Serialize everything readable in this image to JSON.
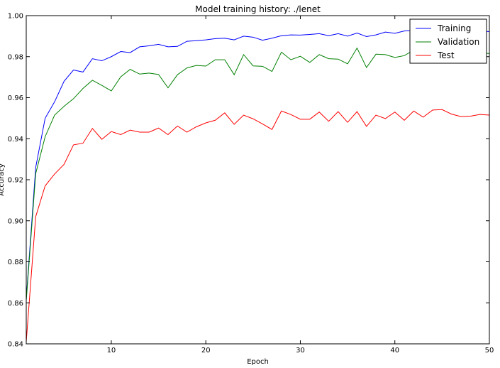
{
  "chart_data": {
    "type": "line",
    "title": "Model training history: ./lenet",
    "xlabel": "Epoch",
    "ylabel": "Accuracy",
    "xlim": [
      1,
      50
    ],
    "ylim": [
      0.84,
      1.0
    ],
    "x_ticks": [
      10,
      20,
      30,
      40,
      50
    ],
    "y_ticks": [
      "0.84",
      "0.86",
      "0.88",
      "0.90",
      "0.92",
      "0.94",
      "0.96",
      "0.98",
      "1.00"
    ],
    "grid": false,
    "legend_position": "top-right",
    "x": [
      1,
      2,
      3,
      4,
      5,
      6,
      7,
      8,
      9,
      10,
      11,
      12,
      13,
      14,
      15,
      16,
      17,
      18,
      19,
      20,
      21,
      22,
      23,
      24,
      25,
      26,
      27,
      28,
      29,
      30,
      31,
      32,
      33,
      34,
      35,
      36,
      37,
      38,
      39,
      40,
      41,
      42,
      43,
      44,
      45,
      46,
      47,
      48,
      49,
      50
    ],
    "series": [
      {
        "name": "Training",
        "color": "#0000ff",
        "values": [
          0.862,
          0.926,
          0.95,
          0.958,
          0.968,
          0.9735,
          0.9725,
          0.979,
          0.978,
          0.98,
          0.9825,
          0.982,
          0.9848,
          0.9853,
          0.986,
          0.9848,
          0.985,
          0.9875,
          0.9878,
          0.9882,
          0.9888,
          0.989,
          0.9882,
          0.99,
          0.9895,
          0.988,
          0.989,
          0.9902,
          0.9906,
          0.9905,
          0.9908,
          0.9912,
          0.9902,
          0.9912,
          0.99,
          0.9915,
          0.9898,
          0.9906,
          0.992,
          0.9914,
          0.9925,
          0.9928,
          0.993,
          0.993,
          0.9928,
          0.9925,
          0.9926,
          0.9924,
          0.9925,
          0.9922
        ]
      },
      {
        "name": "Validation",
        "color": "#008000",
        "values": [
          0.861,
          0.923,
          0.941,
          0.9515,
          0.9558,
          0.9595,
          0.9645,
          0.9685,
          0.966,
          0.9633,
          0.9702,
          0.9738,
          0.9715,
          0.972,
          0.9713,
          0.9648,
          0.9712,
          0.9745,
          0.9757,
          0.9754,
          0.9785,
          0.9785,
          0.9712,
          0.981,
          0.9755,
          0.9753,
          0.9728,
          0.9822,
          0.9785,
          0.9802,
          0.9772,
          0.981,
          0.979,
          0.9788,
          0.9765,
          0.9842,
          0.9747,
          0.9812,
          0.981,
          0.9796,
          0.9805,
          0.9832,
          0.9818,
          0.982,
          0.9822,
          0.9815,
          0.982,
          0.9815,
          0.9818,
          0.9815
        ]
      },
      {
        "name": "Test",
        "color": "#ff0000",
        "values": [
          0.841,
          0.902,
          0.917,
          0.9228,
          0.9275,
          0.937,
          0.9378,
          0.945,
          0.9397,
          0.9435,
          0.942,
          0.9442,
          0.9432,
          0.9432,
          0.9452,
          0.942,
          0.9462,
          0.9432,
          0.9458,
          0.9477,
          0.949,
          0.9526,
          0.947,
          0.9515,
          0.9497,
          0.9472,
          0.9445,
          0.9535,
          0.9518,
          0.9495,
          0.9495,
          0.953,
          0.9485,
          0.9532,
          0.948,
          0.9532,
          0.946,
          0.9515,
          0.9498,
          0.953,
          0.949,
          0.9535,
          0.9505,
          0.954,
          0.9542,
          0.952,
          0.9508,
          0.951,
          0.9518,
          0.9515
        ]
      }
    ]
  }
}
